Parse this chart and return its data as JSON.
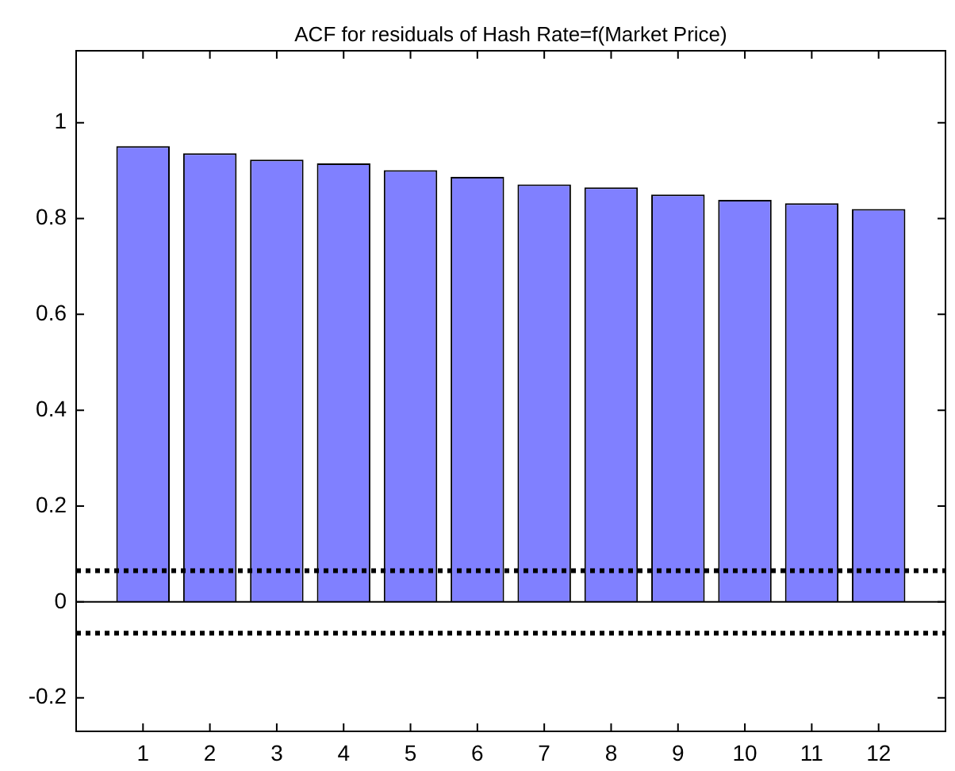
{
  "chart_data": {
    "type": "bar",
    "title": "ACF for residuals of Hash Rate=f(Market Price)",
    "x": [
      1,
      2,
      3,
      4,
      5,
      6,
      7,
      8,
      9,
      10,
      11,
      12
    ],
    "values": [
      0.951,
      0.936,
      0.923,
      0.915,
      0.901,
      0.887,
      0.871,
      0.865,
      0.85,
      0.839,
      0.832,
      0.82
    ],
    "color": "#8080ff",
    "xlim": [
      0,
      13
    ],
    "xticks": [
      1,
      2,
      3,
      4,
      5,
      6,
      7,
      8,
      9,
      10,
      11,
      12
    ],
    "ylim": [
      -0.27,
      1.15
    ],
    "yticks": [
      -0.2,
      0,
      0.2,
      0.4,
      0.6,
      0.8,
      1
    ],
    "ref_lines": [
      {
        "axis": "y",
        "value": 0.065,
        "color": "#000000",
        "line_style": "dotted"
      },
      {
        "axis": "y",
        "value": -0.065,
        "color": "#000000",
        "line_style": "dotted"
      },
      {
        "axis": "y",
        "value": 0,
        "color": "#000000",
        "line_style": "solid"
      }
    ],
    "grid": false,
    "legend": false
  }
}
